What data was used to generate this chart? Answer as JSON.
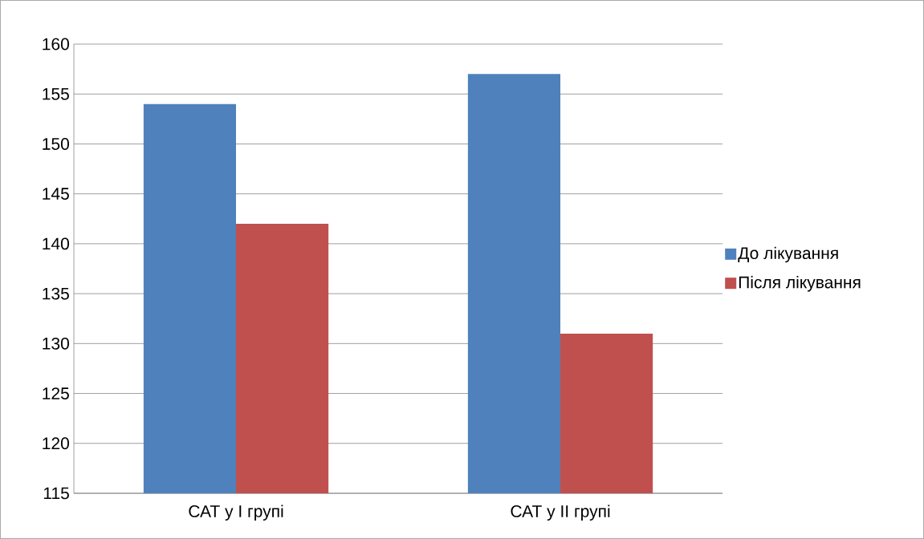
{
  "chart_data": {
    "type": "bar",
    "categories": [
      "САТ у І групі",
      "САТ у ІІ групі"
    ],
    "series": [
      {
        "name": "До лікування",
        "color": "#4f81bd",
        "values": [
          154,
          157
        ]
      },
      {
        "name": "Після лікування",
        "color": "#c0504d",
        "values": [
          142,
          131
        ]
      }
    ],
    "ylim": [
      115,
      160
    ],
    "yticks": [
      115,
      120,
      125,
      130,
      135,
      140,
      145,
      150,
      155,
      160
    ],
    "grid": "y",
    "legend": "right"
  }
}
